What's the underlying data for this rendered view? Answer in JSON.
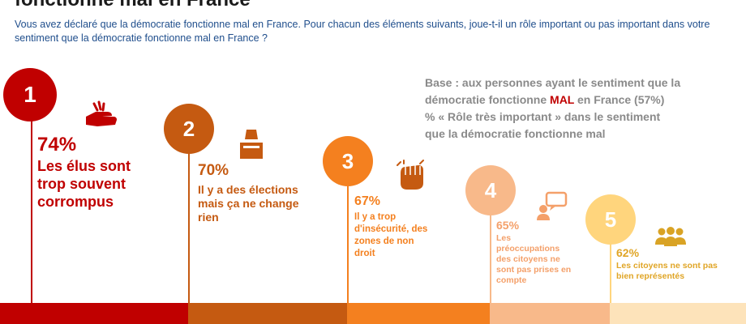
{
  "title": "fonctionne mal en France",
  "question": "Vous avez déclaré que la démocratie fonctionne mal en France. Pour chacun des éléments suivants, joue-t-il un rôle important ou pas important dans votre sentiment que la démocratie fonctionne mal en France ?",
  "base_note": {
    "line1": "Base : aux personnes ayant le sentiment que la",
    "line2_pre": "démocratie fonctionne ",
    "line2_highlight": "MAL",
    "line2_post": " en France (57%)",
    "line3": "% « Rôle très important » dans le sentiment",
    "line4": "que la démocratie fonctionne mal"
  },
  "chart_data": {
    "type": "bar",
    "categories": [
      "Les élus sont trop souvent corrompus",
      "Il y a des élections mais ça ne change rien",
      "Il y a trop d'insécurité, des zones de non droit",
      "Les préoccupations des citoyens ne sont pas prises en compte",
      "Les citoyens ne sont pas bien représentés"
    ],
    "values": [
      74,
      70,
      67,
      65,
      62
    ],
    "unit": "%",
    "items": [
      {
        "rank": "1",
        "percent": "74%",
        "label_lines": [
          "Les élus sont",
          "trop souvent",
          "corrompus"
        ],
        "color": "#c00000",
        "icon": "corruption-hand-icon"
      },
      {
        "rank": "2",
        "percent": "70%",
        "label_lines": [
          "Il y a des élections",
          "mais ça ne change",
          "rien"
        ],
        "color": "#c55a11",
        "icon": "ballot-box-icon"
      },
      {
        "rank": "3",
        "percent": "67%",
        "label_lines": [
          "Il y a trop",
          "d'insécurité, des",
          "zones de non",
          "droit"
        ],
        "color": "#f4801f",
        "icon": "raised-fist-icon"
      },
      {
        "rank": "4",
        "percent": "65%",
        "label_lines": [
          "Les",
          "préoccupations",
          "des citoyens ne",
          "sont pas prises en",
          "compte"
        ],
        "color": "#f8b98a",
        "icon": "speech-person-icon"
      },
      {
        "rank": "5",
        "percent": "62%",
        "label_lines": [
          "Les citoyens ne sont pas",
          "bien représentés"
        ],
        "color": "#ffd57d",
        "icon": "group-people-icon"
      }
    ]
  },
  "bands": [
    "#c00000",
    "#c55a11",
    "#f4801f",
    "#f8b98a",
    "#fde3ba"
  ]
}
